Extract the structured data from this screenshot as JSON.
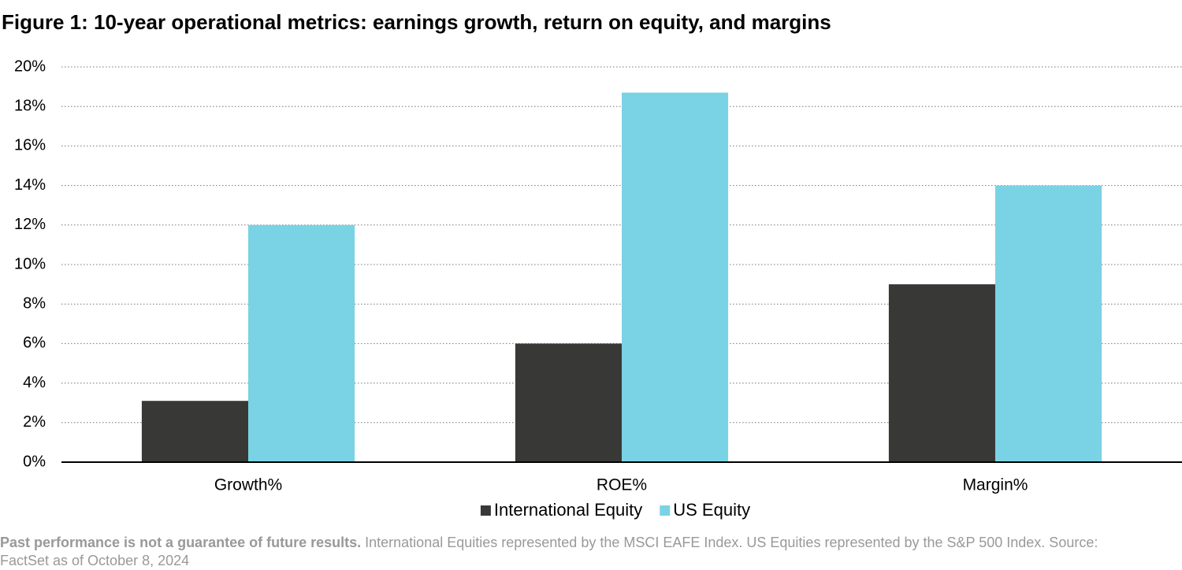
{
  "chart_data": {
    "type": "bar",
    "title": "Figure 1: 10-year operational metrics: earnings growth, return on equity, and margins",
    "categories": [
      "Growth%",
      "ROE%",
      "Margin%"
    ],
    "series": [
      {
        "name": "International Equity",
        "color": "#383936",
        "values": [
          3.1,
          6.0,
          9.0
        ]
      },
      {
        "name": "US Equity",
        "color": "#7ad3e4",
        "values": [
          12.0,
          18.7,
          14.0
        ]
      }
    ],
    "ylim": [
      0,
      20
    ],
    "yticks": [
      {
        "value": 0,
        "label": "0%"
      },
      {
        "value": 2,
        "label": "2%"
      },
      {
        "value": 4,
        "label": "4%"
      },
      {
        "value": 6,
        "label": "6%"
      },
      {
        "value": 8,
        "label": "8%"
      },
      {
        "value": 10,
        "label": "10%"
      },
      {
        "value": 12,
        "label": "12%"
      },
      {
        "value": 14,
        "label": "14%"
      },
      {
        "value": 16,
        "label": "16%"
      },
      {
        "value": 18,
        "label": "18%"
      },
      {
        "value": 20,
        "label": "20%"
      }
    ],
    "grid": true,
    "legend": "bottom",
    "footnote": {
      "bold": "Past performance is not a guarantee of future results.",
      "text": "International Equities represented by the MSCI EAFE Index. US Equities represented by the S&P 500 Index. Source: FactSet as of October 8, 2024"
    }
  }
}
